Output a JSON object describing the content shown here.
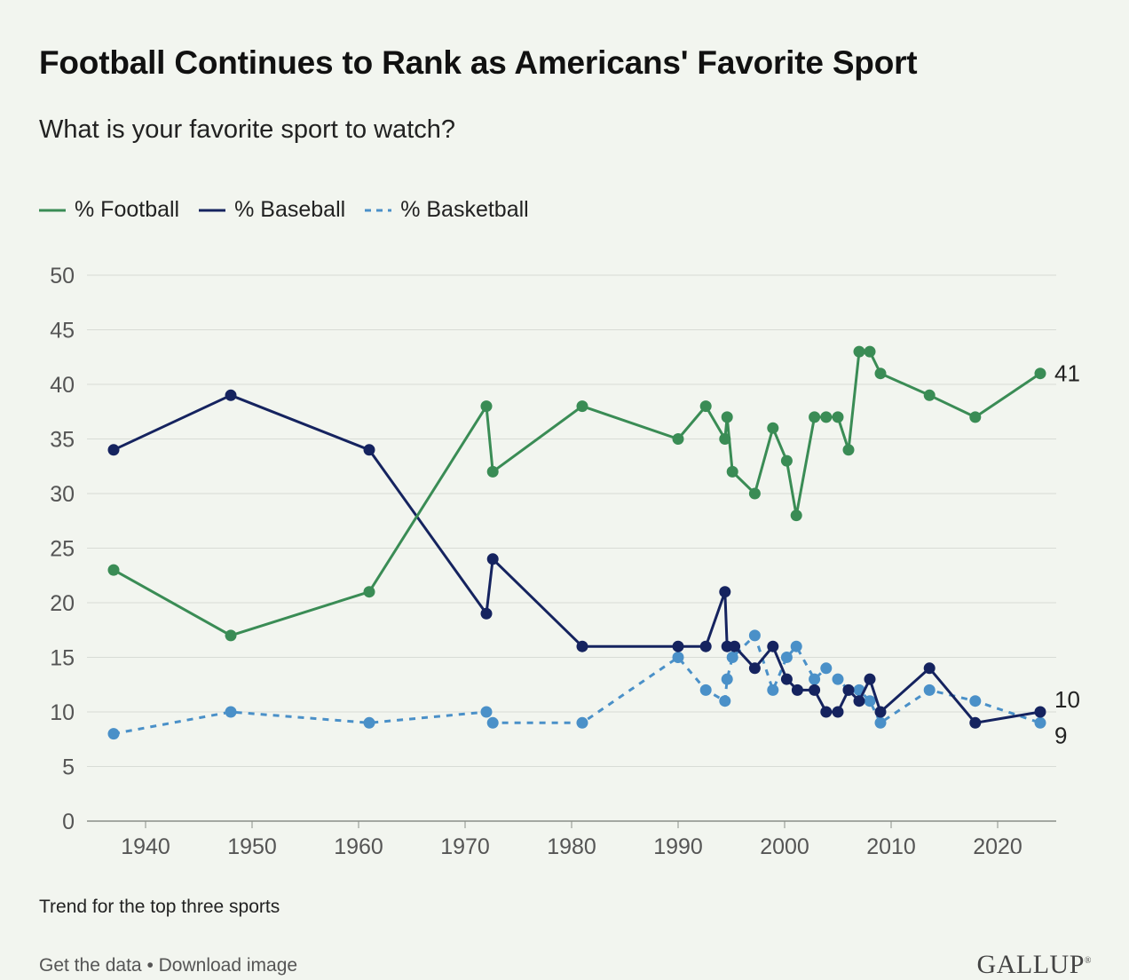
{
  "title": "Football Continues to Rank as Americans' Favorite Sport",
  "subtitle": "What is your favorite sport to watch?",
  "footnote": "Trend for the top three sports",
  "links": {
    "get_data": "Get the data",
    "separator": "•",
    "download": "Download image"
  },
  "brand": {
    "name": "GALLUP",
    "mark": "®"
  },
  "colors": {
    "football": "#3a8c55",
    "baseball": "#15235f",
    "basketball": "#4a90c8",
    "grid": "#d8dcd6",
    "axis_text": "#555555"
  },
  "chart_data": {
    "type": "line",
    "xlim": [
      1934.5,
      2025.5
    ],
    "ylim": [
      0,
      50
    ],
    "x_ticks": [
      1940,
      1950,
      1960,
      1970,
      1980,
      1990,
      2000,
      2010,
      2020
    ],
    "y_ticks": [
      0,
      5,
      10,
      15,
      20,
      25,
      30,
      35,
      40,
      45,
      50
    ],
    "grid": true,
    "legend": "top-left",
    "series": [
      {
        "name": "% Football",
        "key": "football",
        "dashed": false,
        "end_label": "41",
        "points": [
          [
            1937,
            23
          ],
          [
            1948,
            17
          ],
          [
            1961,
            21
          ],
          [
            1972,
            38
          ],
          [
            1972.6,
            32
          ],
          [
            1981,
            38
          ],
          [
            1990,
            35
          ],
          [
            1992.6,
            38
          ],
          [
            1994.4,
            35
          ],
          [
            1994.6,
            37
          ],
          [
            1995.1,
            32
          ],
          [
            1997.2,
            30
          ],
          [
            1998.9,
            36
          ],
          [
            2000.2,
            33
          ],
          [
            2001.1,
            28
          ],
          [
            2002.8,
            37
          ],
          [
            2003.9,
            37
          ],
          [
            2005,
            37
          ],
          [
            2006,
            34
          ],
          [
            2007,
            43
          ],
          [
            2008,
            43
          ],
          [
            2009,
            41
          ],
          [
            2013.6,
            39
          ],
          [
            2017.9,
            37
          ],
          [
            2024,
            41
          ]
        ]
      },
      {
        "name": "% Baseball",
        "key": "baseball",
        "dashed": false,
        "end_label": "10",
        "points": [
          [
            1937,
            34
          ],
          [
            1948,
            39
          ],
          [
            1961,
            34
          ],
          [
            1972,
            19
          ],
          [
            1972.6,
            24
          ],
          [
            1981,
            16
          ],
          [
            1990,
            16
          ],
          [
            1992.6,
            16
          ],
          [
            1994.4,
            21
          ],
          [
            1994.6,
            16
          ],
          [
            1995.3,
            16
          ],
          [
            1997.2,
            14
          ],
          [
            1998.9,
            16
          ],
          [
            2000.2,
            13
          ],
          [
            2001.2,
            12
          ],
          [
            2002.8,
            12
          ],
          [
            2003.9,
            10
          ],
          [
            2005,
            10
          ],
          [
            2006,
            12
          ],
          [
            2007,
            11
          ],
          [
            2008,
            13
          ],
          [
            2009,
            10
          ],
          [
            2013.6,
            14
          ],
          [
            2017.9,
            9
          ],
          [
            2024,
            10
          ]
        ]
      },
      {
        "name": "% Basketball",
        "key": "basketball",
        "dashed": true,
        "end_label": "9",
        "points": [
          [
            1937,
            8
          ],
          [
            1948,
            10
          ],
          [
            1961,
            9
          ],
          [
            1972,
            10
          ],
          [
            1972.6,
            9
          ],
          [
            1981,
            9
          ],
          [
            1990,
            15
          ],
          [
            1992.6,
            12
          ],
          [
            1994.4,
            11
          ],
          [
            1994.6,
            13
          ],
          [
            1995.1,
            15
          ],
          [
            1997.2,
            17
          ],
          [
            1998.9,
            12
          ],
          [
            2000.2,
            15
          ],
          [
            2001.1,
            16
          ],
          [
            2002.8,
            13
          ],
          [
            2003.9,
            14
          ],
          [
            2005,
            13
          ],
          [
            2006,
            12
          ],
          [
            2007,
            12
          ],
          [
            2008,
            11
          ],
          [
            2009,
            9
          ],
          [
            2013.6,
            12
          ],
          [
            2017.9,
            11
          ],
          [
            2024,
            9
          ]
        ]
      }
    ]
  }
}
